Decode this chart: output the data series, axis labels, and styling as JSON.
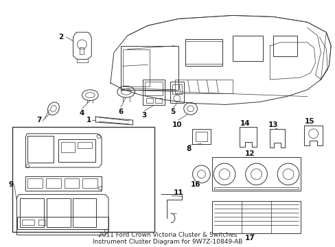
{
  "title": "2011 Ford Crown Victoria Cluster & Switches\nInstrument Cluster Diagram for 9W7Z-10849-AB",
  "background_color": "#ffffff",
  "line_color": "#333333",
  "text_color": "#111111",
  "label_fontsize": 7.5,
  "title_fontsize": 6.5,
  "fig_width": 4.89,
  "fig_height": 3.6
}
